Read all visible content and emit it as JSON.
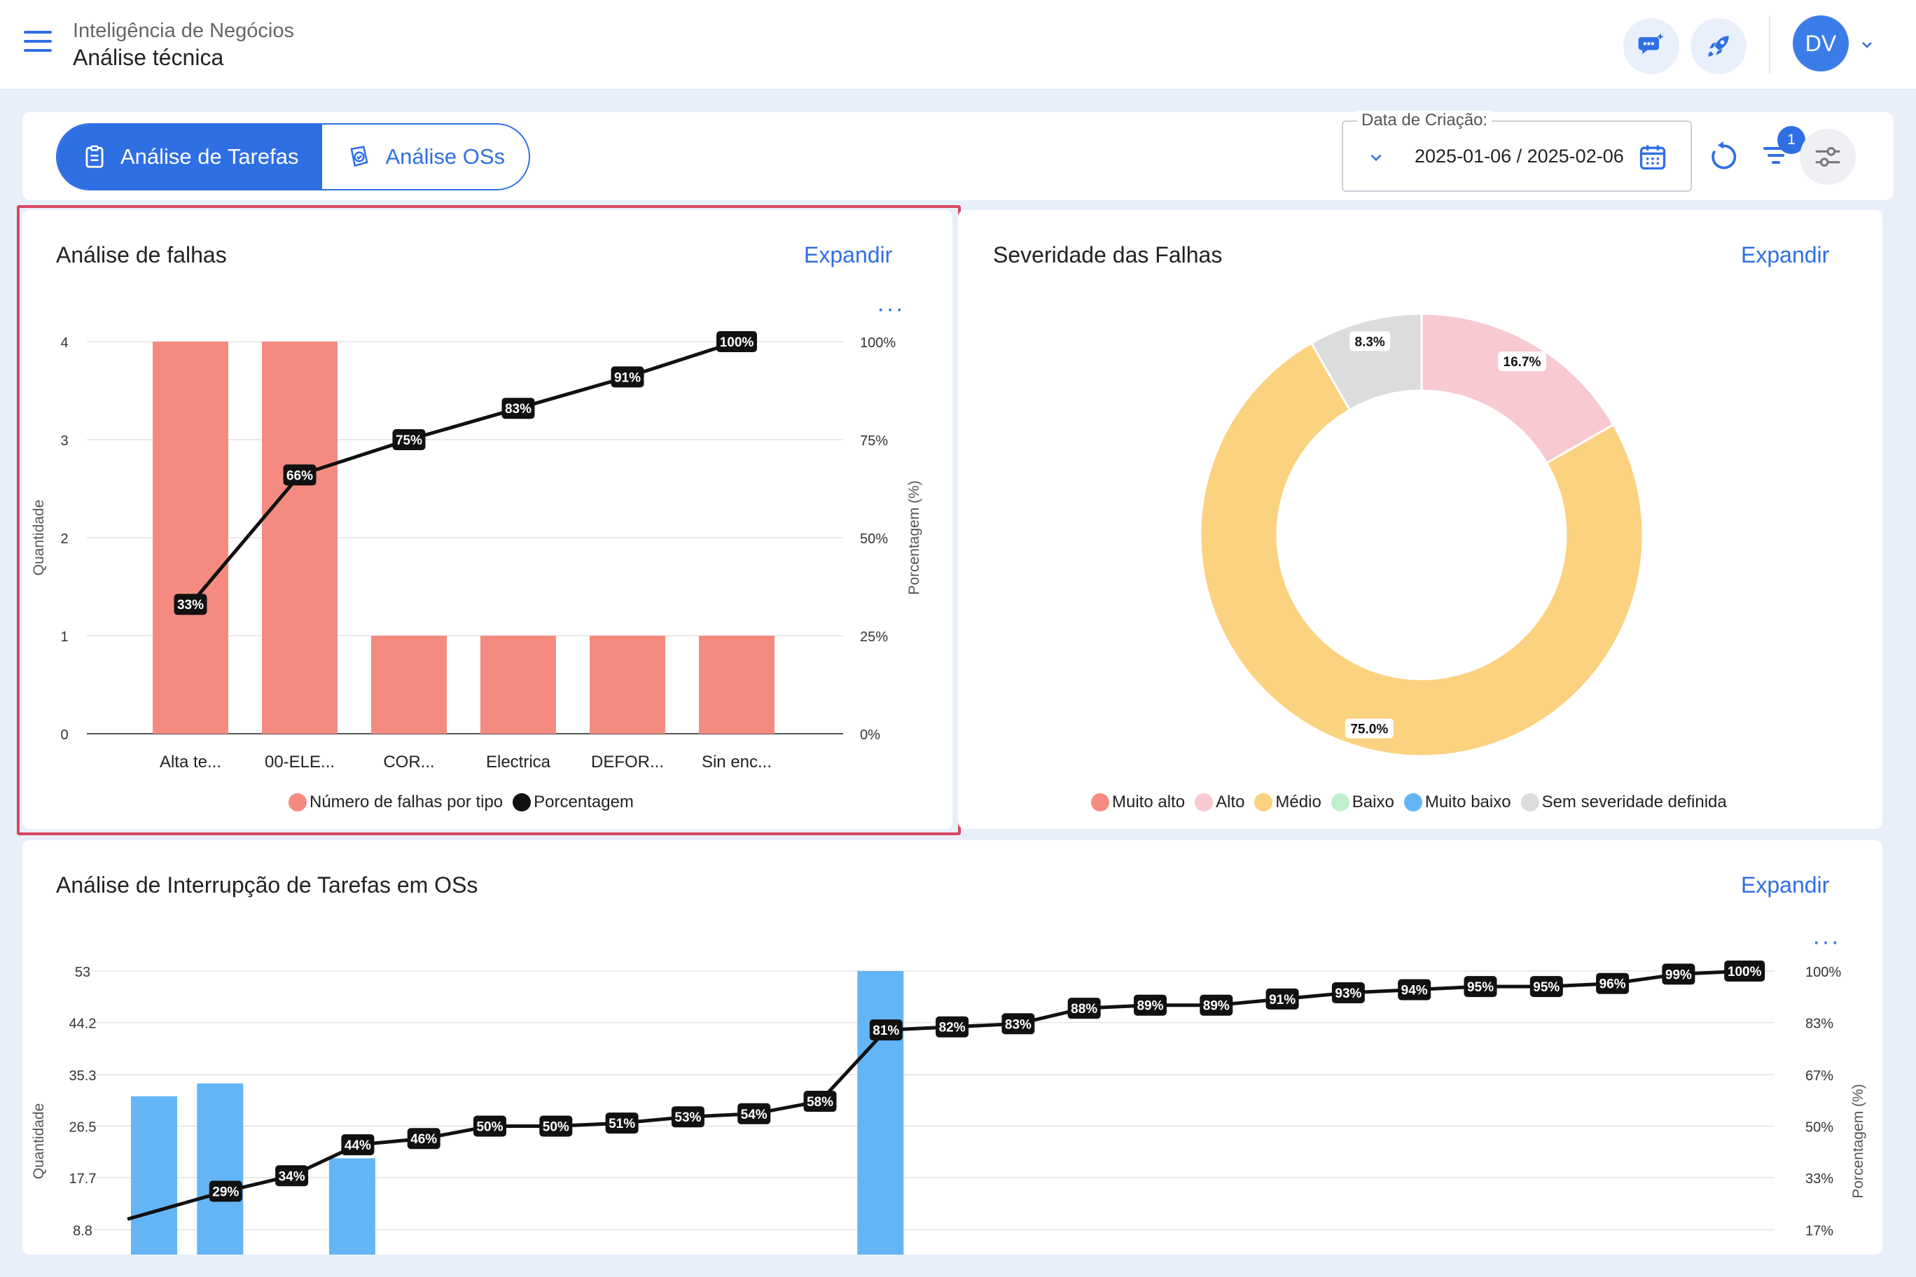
{
  "header": {
    "subtitle": "Inteligência de Negócios",
    "title": "Análise técnica",
    "avatar_initials": "DV"
  },
  "tabs": [
    {
      "label": "Análise de Tarefas",
      "active": true
    },
    {
      "label": "Análise OSs",
      "active": false
    }
  ],
  "date_filter": {
    "label": "Data de Criação:",
    "value": "2025-01-06 / 2025-02-06"
  },
  "filter_count": "1",
  "colors": {
    "accent": "#2f6fe4",
    "bar_red": "#f58b80",
    "bar_blue": "#64b5f6",
    "line": "#111111"
  },
  "failure_analysis": {
    "title": "Análise de falhas",
    "expand_label": "Expandir",
    "legend": [
      {
        "label": "Número de falhas por tipo",
        "color": "#f58b80"
      },
      {
        "label": "Porcentagem",
        "color": "#111111"
      }
    ]
  },
  "severity": {
    "title": "Severidade das Falhas",
    "expand_label": "Expandir",
    "legend": [
      {
        "label": "Muito alto",
        "color": "#f58b80"
      },
      {
        "label": "Alto",
        "color": "#f9c9d1"
      },
      {
        "label": "Médio",
        "color": "#fbd27f"
      },
      {
        "label": "Baixo",
        "color": "#bff0cb"
      },
      {
        "label": "Muito baixo",
        "color": "#64b5f6"
      },
      {
        "label": "Sem severidade definida",
        "color": "#dcdcdc"
      }
    ]
  },
  "interruption": {
    "title": "Análise de Interrupção de Tarefas em OSs",
    "expand_label": "Expandir"
  },
  "chart_data": [
    {
      "type": "bar",
      "title": "Análise de falhas",
      "categories": [
        "Alta te...",
        "00-ELE...",
        "COR...",
        "Electrica",
        "DEFOR...",
        "Sin enc..."
      ],
      "series": [
        {
          "name": "Número de falhas por tipo",
          "type": "bar",
          "values": [
            4,
            4,
            1,
            1,
            1,
            1
          ]
        },
        {
          "name": "Porcentagem",
          "type": "line",
          "axis": "right",
          "values": [
            33,
            66,
            75,
            83,
            91,
            100
          ],
          "labels": [
            "33%",
            "66%",
            "75%",
            "83%",
            "91%",
            "100%"
          ]
        }
      ],
      "ylabel": "Quantidade",
      "y2label": "Porcentagem (%)",
      "ylim": [
        0,
        4
      ],
      "yticks": [
        "0",
        "1",
        "2",
        "3",
        "4"
      ],
      "y2lim": [
        0,
        100
      ],
      "y2ticks": [
        "0%",
        "25%",
        "50%",
        "75%",
        "100%"
      ],
      "grid": true,
      "legend": "bottom"
    },
    {
      "type": "pie",
      "title": "Severidade das Falhas",
      "donut": true,
      "slices": [
        {
          "name": "Alto",
          "value": 16.7,
          "label": "16.7%",
          "color": "#f9c9d1"
        },
        {
          "name": "Médio",
          "value": 75.0,
          "label": "75.0%",
          "color": "#fbd27f"
        },
        {
          "name": "Sem severidade definida",
          "value": 8.3,
          "label": "8.3%",
          "color": "#dcdcdc"
        }
      ],
      "legend": "bottom"
    },
    {
      "type": "bar",
      "title": "Análise de Interrupção de Tarefas em OSs",
      "bars": [
        31.6,
        33.8,
        1.2,
        21.0,
        0,
        0,
        0,
        0,
        0,
        0,
        0,
        53.0,
        0,
        0,
        1.2,
        0,
        0,
        0,
        0,
        0,
        0,
        0,
        0,
        0,
        0
      ],
      "series": [
        {
          "name": "Porcentagem",
          "type": "line",
          "axis": "right",
          "values": [
            20,
            29,
            34,
            44,
            46,
            50,
            50,
            51,
            53,
            54,
            58,
            81,
            82,
            83,
            88,
            89,
            89,
            91,
            93,
            94,
            95,
            95,
            96,
            99,
            100
          ],
          "labels": [
            "",
            "29%",
            "34%",
            "44%",
            "46%",
            "50%",
            "50%",
            "51%",
            "53%",
            "54%",
            "58%",
            "81%",
            "82%",
            "83%",
            "88%",
            "89%",
            "89%",
            "91%",
            "93%",
            "94%",
            "95%",
            "95%",
            "96%",
            "99%",
            "100%"
          ]
        }
      ],
      "ylabel": "Quantidade",
      "y2label": "Porcentagem (%)",
      "ylim": [
        0,
        53
      ],
      "yticks": [
        "8.8",
        "17.7",
        "26.5",
        "35.3",
        "44.2",
        "53"
      ],
      "y2lim": [
        0,
        100
      ],
      "y2ticks": [
        "17%",
        "33%",
        "50%",
        "67%",
        "83%",
        "100%"
      ],
      "grid": true
    }
  ]
}
